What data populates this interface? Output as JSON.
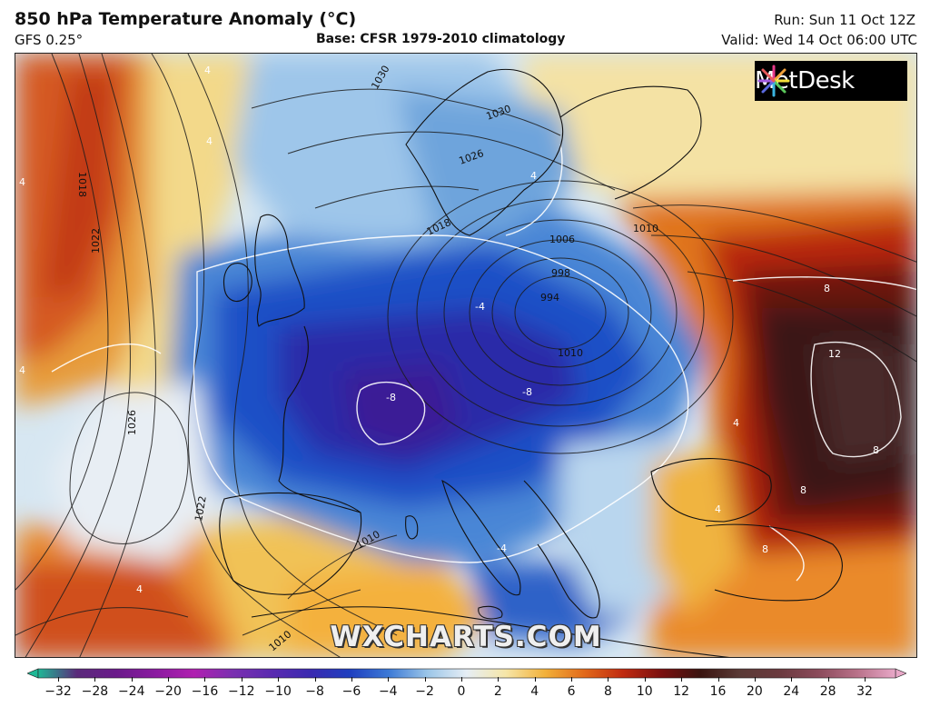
{
  "header": {
    "title": "850 hPa Temperature Anomaly (°C)",
    "model": "GFS 0.25°",
    "base": "Base: CFSR 1979-2010 climatology",
    "run": "Run: Sun 11 Oct 12Z",
    "valid": "Valid: Wed 14 Oct 06:00 UTC"
  },
  "logo": {
    "text": "MetDesk"
  },
  "watermark": "WXCHARTS.COM",
  "colorbar": {
    "ticks": [
      "−32",
      "−28",
      "−24",
      "−20",
      "−16",
      "−12",
      "−10",
      "−8",
      "−6",
      "−4",
      "−2",
      "0",
      "2",
      "4",
      "6",
      "8",
      "10",
      "12",
      "16",
      "20",
      "24",
      "28",
      "32"
    ],
    "colors": [
      "#1fb896",
      "#5a2a7a",
      "#6a1a8a",
      "#8a1aa0",
      "#b020b0",
      "#7a30b0",
      "#5a2ab0",
      "#3a2ab0",
      "#1f3fbf",
      "#3d7ad6",
      "#9cc6e8",
      "#e6eef5",
      "#f6e6a8",
      "#f2b13a",
      "#e26a1a",
      "#c02a10",
      "#7a1010",
      "#3a1410",
      "#5a3a36",
      "#6a3a3e",
      "#8a4a5a",
      "#b87088",
      "#e8a8c8"
    ]
  },
  "isobar_labels": [
    {
      "text": "1030"
    },
    {
      "text": "1030"
    },
    {
      "text": "1026"
    },
    {
      "text": "1018"
    },
    {
      "text": "1018"
    },
    {
      "text": "1022"
    },
    {
      "text": "1026"
    },
    {
      "text": "1022"
    },
    {
      "text": "1010"
    },
    {
      "text": "1006"
    },
    {
      "text": "998"
    },
    {
      "text": "994"
    },
    {
      "text": "1010"
    },
    {
      "text": "1010"
    },
    {
      "text": "1010"
    }
  ],
  "anomaly_labels": [
    {
      "text": "4"
    },
    {
      "text": "4"
    },
    {
      "text": "-4"
    },
    {
      "text": "-8"
    },
    {
      "text": "-8"
    },
    {
      "text": "4"
    },
    {
      "text": "-4"
    },
    {
      "text": "8"
    },
    {
      "text": "12"
    },
    {
      "text": "8"
    },
    {
      "text": "8"
    },
    {
      "text": "8"
    },
    {
      "text": "4"
    },
    {
      "text": "4"
    },
    {
      "text": "4"
    },
    {
      "text": "4"
    },
    {
      "text": "4"
    }
  ]
}
